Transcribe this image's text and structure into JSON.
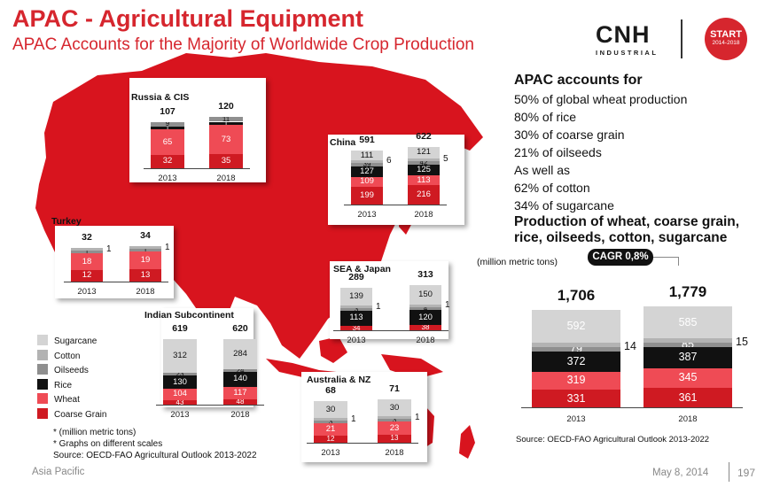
{
  "header": {
    "title": "APAC - Agricultural Equipment",
    "subtitle": "APAC Accounts for the Majority of Worldwide Crop Production"
  },
  "logo": {
    "main": "CNH",
    "sub": "INDUSTRIAL"
  },
  "badge": {
    "main": "START",
    "sub": "2014-2018"
  },
  "colors": {
    "sugarcane": "#d4d4d4",
    "cotton": "#b3b3b3",
    "oilseeds": "#8f8f8f",
    "rice": "#111111",
    "wheat": "#ef4b55",
    "coarse_grain": "#cf1a22",
    "map_fill": "#d8141e",
    "accent_red": "#d6262e"
  },
  "legend": [
    {
      "label": "Sugarcane",
      "color": "#d4d4d4"
    },
    {
      "label": "Cotton",
      "color": "#b3b3b3"
    },
    {
      "label": "Oilseeds",
      "color": "#8f8f8f"
    },
    {
      "label": "Rice",
      "color": "#111111"
    },
    {
      "label": "Wheat",
      "color": "#ef4b55"
    },
    {
      "label": "Coarse Grain",
      "color": "#cf1a22"
    }
  ],
  "notes": [
    "* (million metric  tons)",
    "* Graphs on different scales",
    "Source: OECD-FAO Agricultural Outlook 2013-2022"
  ],
  "right_panel": {
    "heading": "APAC accounts for",
    "items": [
      "50% of global wheat production",
      "80% of rice",
      "30% of coarse grain",
      "21% of oilseeds",
      "As well as",
      "62% of cotton",
      "34% of sugarcane"
    ],
    "production_title": "Production of wheat, coarse grain, rice, oilseeds, cotton, sugarcane",
    "units": "(million metric tons)",
    "cagr": "CAGR 0,8%",
    "source": "Source: OECD-FAO Agricultural Outlook 2013-2022"
  },
  "footer": {
    "left": "Asia Pacific",
    "date": "May 8, 2014",
    "page": "197"
  },
  "chart_data": [
    {
      "type": "bar",
      "title": "Russia & CIS",
      "categories": [
        "2013",
        "2018"
      ],
      "totals": [
        "107",
        "120"
      ],
      "series": [
        {
          "name": "Coarse Grain",
          "values": [
            32,
            35
          ]
        },
        {
          "name": "Wheat",
          "values": [
            65,
            73
          ]
        },
        {
          "name": "Rice",
          "values": [
            1,
            1
          ]
        },
        {
          "name": "Oilseeds",
          "values": [
            9,
            11
          ]
        }
      ]
    },
    {
      "type": "bar",
      "title": "China",
      "categories": [
        "2013",
        "2018"
      ],
      "totals": [
        "591",
        "622"
      ],
      "series": [
        {
          "name": "Coarse Grain",
          "values": [
            199,
            216
          ]
        },
        {
          "name": "Wheat",
          "values": [
            109,
            113
          ]
        },
        {
          "name": "Rice",
          "values": [
            127,
            125
          ]
        },
        {
          "name": "Oilseeds",
          "values": [
            39,
            42
          ]
        },
        {
          "name": "Cotton",
          "values": [
            6,
            5
          ]
        },
        {
          "name": "Sugarcane",
          "values": [
            111,
            121
          ]
        }
      ]
    },
    {
      "type": "bar",
      "title": "Turkey",
      "categories": [
        "2013",
        "2018"
      ],
      "totals": [
        "32",
        "34"
      ],
      "series": [
        {
          "name": "Coarse Grain",
          "values": [
            12,
            13
          ]
        },
        {
          "name": "Wheat",
          "values": [
            18,
            19
          ]
        },
        {
          "name": "Oilseeds",
          "values": [
            1,
            1
          ]
        },
        {
          "name": "Cotton",
          "values": [
            1,
            1
          ]
        }
      ]
    },
    {
      "type": "bar",
      "title": "SEA & Japan",
      "categories": [
        "2013",
        "2018"
      ],
      "totals": [
        "289",
        "313"
      ],
      "series": [
        {
          "name": "Coarse Grain",
          "values": [
            34,
            38
          ]
        },
        {
          "name": "Rice",
          "values": [
            113,
            120
          ]
        },
        {
          "name": "Oilseeds",
          "values": [
            3,
            4
          ]
        },
        {
          "name": "Cotton",
          "values": [
            1,
            1
          ]
        },
        {
          "name": "Sugarcane",
          "values": [
            139,
            150
          ]
        }
      ]
    },
    {
      "type": "bar",
      "title": "Indian Subcontinent",
      "categories": [
        "2013",
        "2018"
      ],
      "totals": [
        "619",
        "620"
      ],
      "series": [
        {
          "name": "Coarse Grain",
          "values": [
            43,
            48
          ]
        },
        {
          "name": "Wheat",
          "values": [
            104,
            117
          ]
        },
        {
          "name": "Rice",
          "values": [
            130,
            140
          ]
        },
        {
          "name": "Oilseeds",
          "values": [
            23,
            24
          ]
        },
        {
          "name": "Sugarcane",
          "values": [
            312,
            284
          ]
        }
      ]
    },
    {
      "type": "bar",
      "title": "Australia & NZ",
      "categories": [
        "2013",
        "2018"
      ],
      "totals": [
        "68",
        "71"
      ],
      "series": [
        {
          "name": "Coarse Grain",
          "values": [
            12,
            13
          ]
        },
        {
          "name": "Wheat",
          "values": [
            21,
            23
          ]
        },
        {
          "name": "Oilseeds",
          "values": [
            3,
            3
          ]
        },
        {
          "name": "Cotton",
          "values": [
            1,
            1
          ]
        },
        {
          "name": "Sugarcane",
          "values": [
            30,
            30
          ]
        }
      ]
    },
    {
      "type": "bar",
      "title": "",
      "categories": [
        "2013",
        "2018"
      ],
      "totals": [
        "1,706",
        "1,779"
      ],
      "series": [
        {
          "name": "Coarse Grain",
          "values": [
            331,
            361
          ]
        },
        {
          "name": "Wheat",
          "values": [
            319,
            345
          ]
        },
        {
          "name": "Rice",
          "values": [
            372,
            387
          ]
        },
        {
          "name": "Oilseeds",
          "values": [
            79,
            85
          ]
        },
        {
          "name": "Cotton",
          "values": [
            14,
            15
          ]
        },
        {
          "name": "Sugarcane",
          "values": [
            592,
            585
          ]
        }
      ]
    }
  ]
}
